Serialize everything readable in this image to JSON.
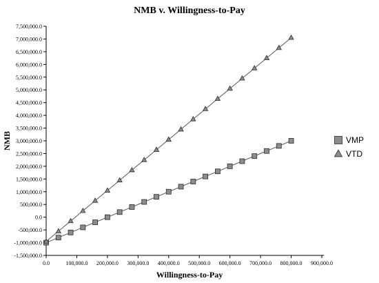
{
  "chart_data": {
    "type": "line",
    "title": "NMB v. Willingness-to-Pay",
    "xlabel": "Willingness-to-Pay",
    "ylabel": "NMB",
    "xlim": [
      0,
      900000
    ],
    "ylim": [
      -1500000,
      7500000
    ],
    "x_ticks": [
      0,
      100000,
      200000,
      300000,
      400000,
      500000,
      600000,
      700000,
      800000,
      900000
    ],
    "x_tick_labels": [
      "0.0",
      "100,000.0",
      "200,000.0",
      "300,000.0",
      "400,000.0",
      "500,000.0",
      "600,000.0",
      "700,000.0",
      "800,000.0",
      "900,000.0"
    ],
    "y_ticks": [
      -1500000,
      -1000000,
      -500000,
      0,
      500000,
      1000000,
      1500000,
      2000000,
      2500000,
      3000000,
      3500000,
      4000000,
      4500000,
      5000000,
      5500000,
      6000000,
      6500000,
      7000000,
      7500000
    ],
    "y_tick_labels": [
      "-1,500,000.0",
      "-1,000,000.0",
      "-500,000.0",
      "0.0",
      "500,000.0",
      "1,000,000.0",
      "1,500,000.0",
      "2,000,000.0",
      "2,500,000.0",
      "3,000,000.0",
      "3,500,000.0",
      "4,000,000.0",
      "4,500,000.0",
      "5,000,000.0",
      "5,500,000.0",
      "6,000,000.0",
      "6,500,000.0",
      "7,000,000.0",
      "7,500,000.0"
    ],
    "x": [
      0,
      40000,
      80000,
      120000,
      160000,
      200000,
      240000,
      280000,
      320000,
      360000,
      400000,
      440000,
      480000,
      520000,
      560000,
      600000,
      640000,
      680000,
      720000,
      760000,
      800000
    ],
    "grid": false,
    "legend_position": "right",
    "series": [
      {
        "name": "VMP",
        "marker": "square",
        "color": "#8c8c8c",
        "values": [
          -1000000,
          -800000,
          -600000,
          -400000,
          -200000,
          0,
          200000,
          400000,
          600000,
          800000,
          1000000,
          1200000,
          1400000,
          1600000,
          1800000,
          2000000,
          2200000,
          2400000,
          2600000,
          2800000,
          3000000
        ]
      },
      {
        "name": "VTD",
        "marker": "triangle",
        "color": "#8c8c8c",
        "values": [
          -950000,
          -550000,
          -150000,
          250000,
          650000,
          1050000,
          1450000,
          1850000,
          2250000,
          2650000,
          3050000,
          3450000,
          3850000,
          4250000,
          4650000,
          5050000,
          5450000,
          5850000,
          6250000,
          6650000,
          7050000
        ]
      }
    ]
  }
}
